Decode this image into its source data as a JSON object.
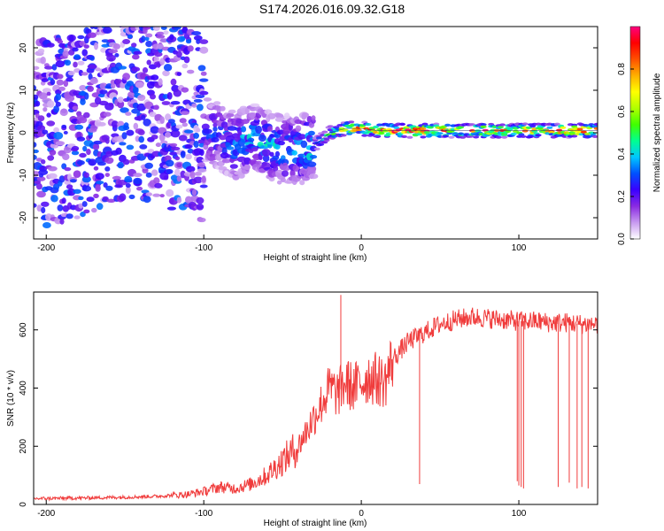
{
  "title": "S174.2026.016.09.32.G18",
  "chart_data": [
    {
      "type": "heatmap",
      "xlabel": "Height of straight line (km)",
      "ylabel": "Frequency (Hz)",
      "xlim": [
        -208,
        150
      ],
      "ylim": [
        -25,
        25
      ],
      "xticks": [
        -200,
        -100,
        0,
        100
      ],
      "yticks": [
        -20,
        -10,
        0,
        10,
        20
      ],
      "grid": false,
      "colorbar": {
        "label": "Normalized spectral amplitude",
        "range": [
          0,
          1
        ],
        "ticks": [
          "0.0",
          "0.2",
          "0.4",
          "0.6",
          "0.8"
        ],
        "colors": [
          "#ffffff",
          "#c89af0",
          "#8a2be2",
          "#3a00ff",
          "#0050ff",
          "#00c8ff",
          "#00ff90",
          "#40ff00",
          "#b0ff00",
          "#ffff00",
          "#ffb000",
          "#ff5000",
          "#ff0000",
          "#ff0080"
        ]
      },
      "ridge": {
        "x": [
          -200,
          -180,
          -160,
          -150,
          -140,
          -130,
          -120,
          -110,
          -100,
          -90,
          -80,
          -70,
          -60,
          -50,
          -40,
          -30,
          -20,
          -10,
          0,
          10,
          20,
          40,
          60,
          80,
          100,
          120,
          148
        ],
        "frequency": [
          0,
          2,
          5,
          7,
          6,
          5,
          4,
          3,
          1,
          -1,
          -3,
          -1,
          -3,
          -4,
          -4,
          -3,
          0,
          1,
          1,
          0.5,
          0.5,
          0.5,
          0.5,
          0.5,
          0.5,
          0.5,
          0.5
        ],
        "amplitude": [
          0.08,
          0.12,
          0.2,
          0.25,
          0.3,
          0.3,
          0.32,
          0.3,
          0.3,
          0.3,
          0.38,
          0.4,
          0.42,
          0.4,
          0.4,
          0.5,
          0.6,
          0.85,
          0.9,
          0.95,
          1.0,
          1.0,
          0.85,
          0.9,
          0.92,
          0.95,
          0.98
        ]
      }
    },
    {
      "type": "line",
      "xlabel": "Height of straight line (km)",
      "ylabel": "SNR (10 * v/v)",
      "xlim": [
        -208,
        150
      ],
      "ylim": [
        0,
        730
      ],
      "xticks": [
        -200,
        -100,
        0,
        100
      ],
      "yticks": [
        0,
        200,
        400,
        600
      ],
      "grid": false,
      "series": [
        {
          "color": "#f03c3c",
          "x": [
            -208,
            -180,
            -150,
            -130,
            -110,
            -100,
            -90,
            -80,
            -70,
            -60,
            -50,
            -40,
            -30,
            -20,
            -15,
            -10,
            -5,
            0,
            5,
            10,
            15,
            20,
            25,
            30,
            40,
            50,
            60,
            70,
            80,
            90,
            100,
            110,
            120,
            130,
            140,
            150
          ],
          "values": [
            20,
            22,
            25,
            28,
            35,
            45,
            60,
            55,
            70,
            100,
            150,
            200,
            300,
            400,
            380,
            420,
            400,
            420,
            440,
            430,
            420,
            500,
            530,
            560,
            590,
            620,
            635,
            645,
            640,
            635,
            630,
            630,
            625,
            625,
            620,
            620
          ],
          "dropouts": [
            {
              "x": -13,
              "value": 720
            },
            {
              "x": 37,
              "value": 70
            },
            {
              "x": 99,
              "value": 80
            },
            {
              "x": 100,
              "value": 65
            },
            {
              "x": 101.5,
              "value": 60
            },
            {
              "x": 103,
              "value": 55
            },
            {
              "x": 125,
              "value": 60
            },
            {
              "x": 132,
              "value": 75
            },
            {
              "x": 137,
              "value": 55
            },
            {
              "x": 140,
              "value": 60
            },
            {
              "x": 144,
              "value": 55
            }
          ]
        }
      ]
    }
  ]
}
